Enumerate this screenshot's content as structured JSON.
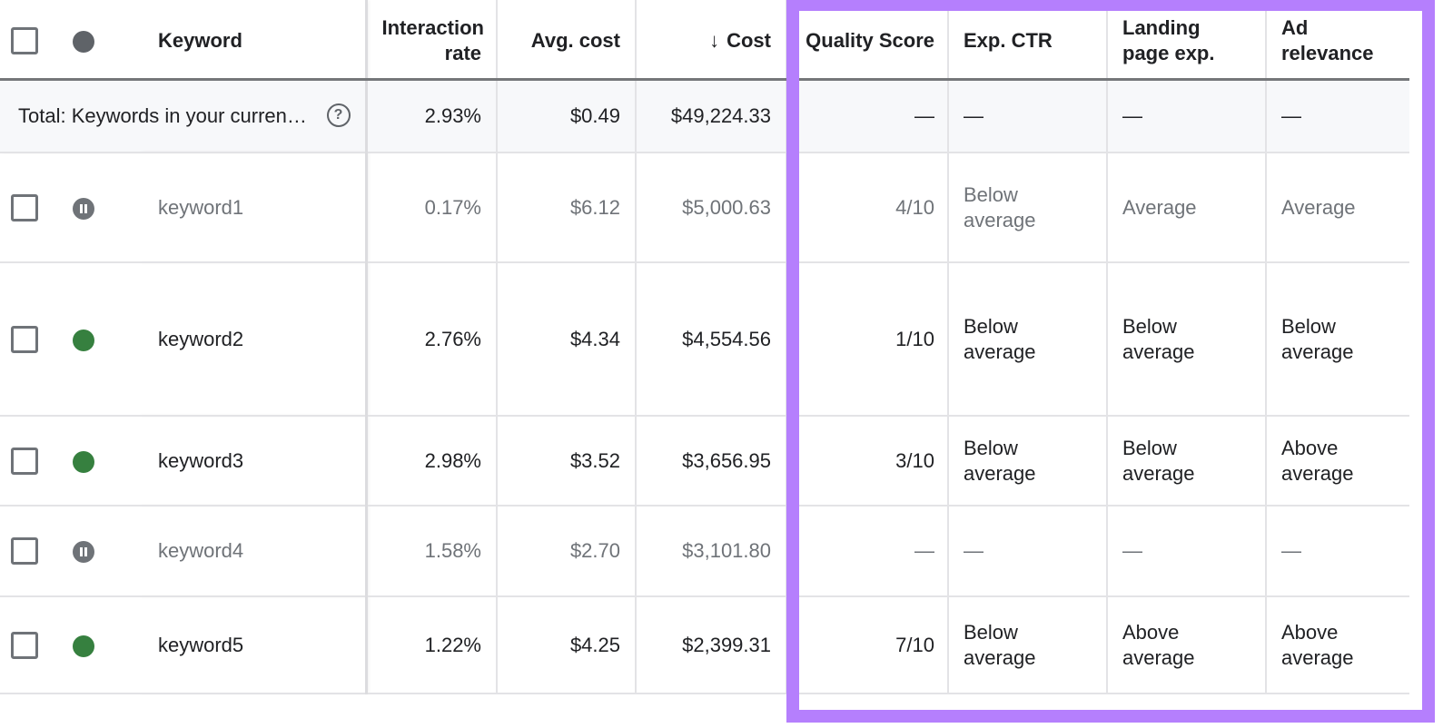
{
  "header": {
    "keyword": "Keyword",
    "interaction_rate": "Interaction rate",
    "avg_cost": "Avg. cost",
    "cost": "Cost",
    "cost_sort_icon": "arrow-down",
    "quality_score": "Quality Score",
    "exp_ctr": "Exp. CTR",
    "landing_page": "Landing page exp.",
    "ad_relevance": "Ad relevance"
  },
  "total": {
    "label": "Total: Keywords in your curren…",
    "interaction_rate": "2.93%",
    "avg_cost": "$0.49",
    "cost": "$49,224.33",
    "quality_score": "—",
    "exp_ctr": "—",
    "landing_page": "—",
    "ad_relevance": "—"
  },
  "colors": {
    "enabled": "#36803f",
    "paused": "#6f7378",
    "highlight": "#b57ffd"
  },
  "rows": [
    {
      "status": "paused",
      "keyword": "keyword1",
      "interaction_rate": "0.17%",
      "avg_cost": "$6.12",
      "cost": "$5,000.63",
      "quality_score": "4/10",
      "exp_ctr": "Below average",
      "landing_page": "Average",
      "ad_relevance": "Average"
    },
    {
      "status": "enabled",
      "keyword": "keyword2",
      "interaction_rate": "2.76%",
      "avg_cost": "$4.34",
      "cost": "$4,554.56",
      "quality_score": "1/10",
      "exp_ctr": "Below average",
      "landing_page": "Below average",
      "ad_relevance": "Below average"
    },
    {
      "status": "enabled",
      "keyword": "keyword3",
      "interaction_rate": "2.98%",
      "avg_cost": "$3.52",
      "cost": "$3,656.95",
      "quality_score": "3/10",
      "exp_ctr": "Below average",
      "landing_page": "Below average",
      "ad_relevance": "Above average"
    },
    {
      "status": "paused",
      "keyword": "keyword4",
      "interaction_rate": "1.58%",
      "avg_cost": "$2.70",
      "cost": "$3,101.80",
      "quality_score": "—",
      "exp_ctr": "—",
      "landing_page": "—",
      "ad_relevance": "—"
    },
    {
      "status": "enabled",
      "keyword": "keyword5",
      "interaction_rate": "1.22%",
      "avg_cost": "$4.25",
      "cost": "$2,399.31",
      "quality_score": "7/10",
      "exp_ctr": "Below average",
      "landing_page": "Above average",
      "ad_relevance": "Above average"
    }
  ]
}
